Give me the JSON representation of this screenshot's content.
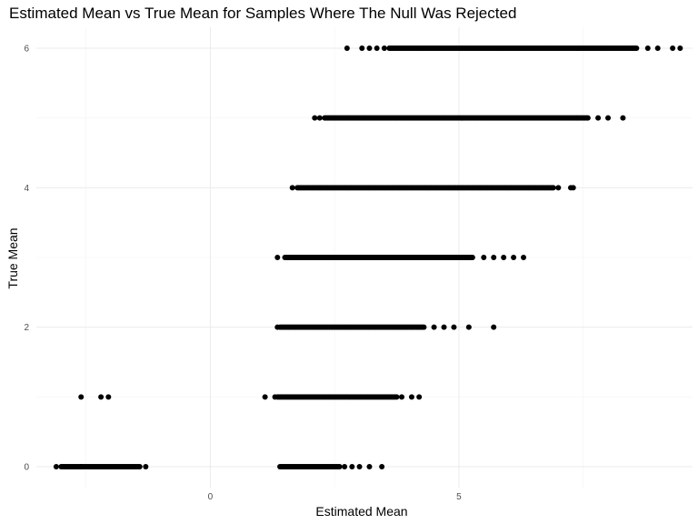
{
  "chart_data": {
    "type": "scatter",
    "title": "Estimated Mean vs True Mean for Samples Where The Null Was Rejected",
    "xlabel": "Estimated Mean",
    "ylabel": "True Mean",
    "xlim": [
      -3.5,
      9.7
    ],
    "ylim": [
      -0.3,
      6.3
    ],
    "x_ticks": [
      0,
      5
    ],
    "x_tick_labels": [
      "0",
      "5"
    ],
    "y_ticks": [
      0,
      2,
      4,
      6
    ],
    "y_tick_labels": [
      "0",
      "2",
      "4",
      "6"
    ],
    "grid": true,
    "legend": "none",
    "point_color": "#000000",
    "bands": [
      {
        "y": 0,
        "dense_ranges": [
          [
            -3.0,
            -1.4
          ],
          [
            1.4,
            2.6
          ]
        ],
        "sparse_x": [
          -3.1,
          -2.6,
          -1.3,
          2.7,
          2.85,
          3.0,
          3.2,
          3.45
        ]
      },
      {
        "y": 1,
        "dense_ranges": [
          [
            1.35,
            3.75
          ]
        ],
        "sparse_x": [
          -2.6,
          -2.2,
          -2.05,
          1.1,
          1.3,
          3.85,
          4.05,
          4.2
        ]
      },
      {
        "y": 2,
        "dense_ranges": [
          [
            1.4,
            4.3
          ]
        ],
        "sparse_x": [
          1.35,
          4.5,
          4.7,
          4.9,
          5.2,
          5.7
        ]
      },
      {
        "y": 3,
        "dense_ranges": [
          [
            1.5,
            5.3
          ]
        ],
        "sparse_x": [
          1.35,
          5.5,
          5.7,
          5.9,
          6.1,
          6.3
        ]
      },
      {
        "y": 4,
        "dense_ranges": [
          [
            1.75,
            6.9
          ]
        ],
        "sparse_x": [
          1.65,
          7.0,
          7.25,
          7.3
        ]
      },
      {
        "y": 5,
        "dense_ranges": [
          [
            2.3,
            7.6
          ]
        ],
        "sparse_x": [
          2.1,
          2.2,
          7.8,
          8.0,
          8.3
        ]
      },
      {
        "y": 6,
        "dense_ranges": [
          [
            3.6,
            8.6
          ]
        ],
        "sparse_x": [
          2.75,
          3.05,
          3.2,
          3.35,
          3.5,
          8.8,
          9.0,
          9.3,
          9.45
        ]
      }
    ]
  }
}
